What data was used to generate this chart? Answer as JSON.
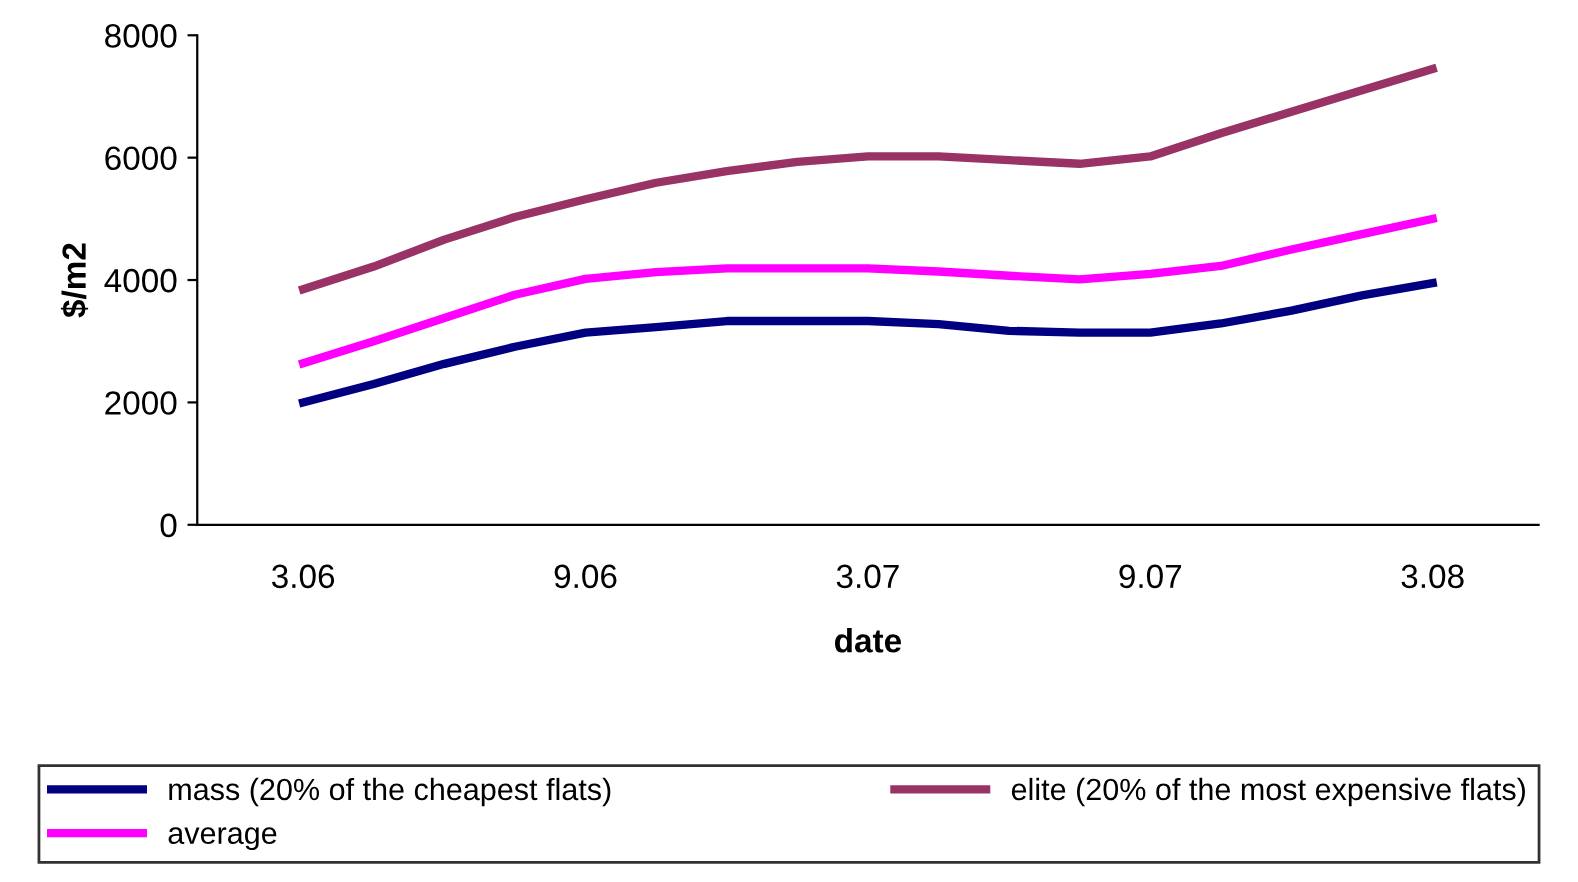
{
  "chart_data": {
    "type": "line",
    "xlabel": "date",
    "ylabel": "$/m2",
    "categories": [
      "3.06",
      null,
      null,
      null,
      "9.06",
      null,
      null,
      null,
      "3.07",
      null,
      null,
      null,
      "9.07",
      null,
      null,
      null,
      "3.08"
    ],
    "series": [
      {
        "name": "mass (20% of the cheapest flats)",
        "color": "#000080",
        "values": [
          2000,
          2300,
          2630,
          2910,
          3140,
          3230,
          3330,
          3330,
          3330,
          3280,
          3170,
          3140,
          3140,
          3290,
          3500,
          3750,
          3950
        ]
      },
      {
        "name": "average",
        "color": "#ff00ff",
        "values": [
          2640,
          3000,
          3380,
          3760,
          4020,
          4130,
          4190,
          4190,
          4190,
          4140,
          4070,
          4010,
          4100,
          4230,
          4500,
          4750,
          5000
        ]
      },
      {
        "name": "elite (20% of the most expensive flats)",
        "color": "#993366",
        "values": [
          3850,
          4220,
          4660,
          5030,
          5320,
          5590,
          5780,
          5930,
          6020,
          6020,
          5960,
          5900,
          6020,
          6400,
          6750,
          7100,
          7450
        ]
      }
    ],
    "ylim": [
      0,
      8000
    ],
    "yticks": [
      0,
      2000,
      4000,
      6000,
      8000
    ],
    "grid": false,
    "legend": "bottom",
    "marker": "none",
    "line_style": "solid"
  }
}
